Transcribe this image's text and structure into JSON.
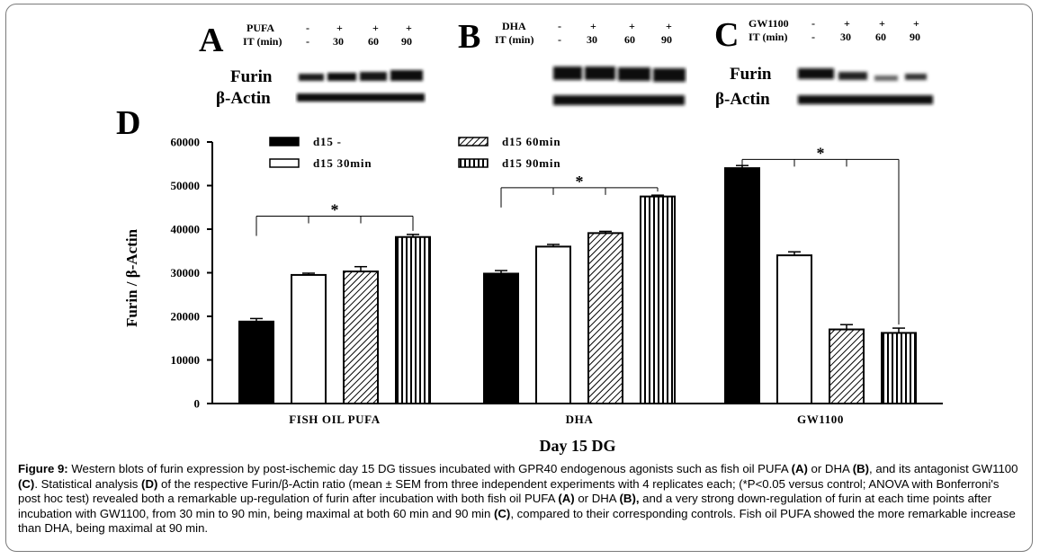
{
  "panels": {
    "A": {
      "letter": "A",
      "treatment_label": "PUFA",
      "time_label": "IT (min)",
      "treatment_values": [
        "-",
        "+",
        "+",
        "+"
      ],
      "time_values": [
        "-",
        "30",
        "60",
        "90"
      ],
      "bands": [
        "Furin",
        "β-Actin"
      ]
    },
    "B": {
      "letter": "B",
      "treatment_label": "DHA",
      "time_label": "IT (min)",
      "treatment_values": [
        "-",
        "+",
        "+",
        "+"
      ],
      "time_values": [
        "-",
        "30",
        "60",
        "90"
      ]
    },
    "C": {
      "letter": "C",
      "treatment_label": "GW1100",
      "time_label": "IT (min)",
      "treatment_values": [
        "-",
        "+",
        "+",
        "+"
      ],
      "time_values": [
        "-",
        "30",
        "60",
        "90"
      ],
      "bands": [
        "Furin",
        "β-Actin"
      ]
    },
    "D": {
      "letter": "D"
    }
  },
  "chart_data": {
    "type": "bar",
    "ylabel": "Furin / β-Actin",
    "xlabel": "Day 15 DG",
    "ylim": [
      0,
      60000
    ],
    "yticks": [
      "0",
      "10000",
      "20000",
      "30000",
      "40000",
      "50000",
      "60000"
    ],
    "categories": [
      "FISH OIL PUFA",
      "DHA",
      "GW1100"
    ],
    "series": [
      {
        "name": "d15 -",
        "pattern": "solid",
        "values": [
          18800,
          29800,
          54000
        ],
        "errors": [
          700,
          700,
          600
        ]
      },
      {
        "name": "d15 30min",
        "pattern": "open",
        "values": [
          29500,
          36000,
          34000
        ],
        "errors": [
          400,
          500,
          800
        ]
      },
      {
        "name": "d15 60min",
        "pattern": "diagonal",
        "values": [
          30300,
          39100,
          17000
        ],
        "errors": [
          1100,
          400,
          1100
        ]
      },
      {
        "name": "d15 90min",
        "pattern": "vertical",
        "values": [
          38200,
          47500,
          16200
        ],
        "errors": [
          600,
          300,
          1100
        ]
      }
    ],
    "legend": [
      "d15 -",
      "d15 60min",
      "d15 30min",
      "d15 90min"
    ],
    "significance": [
      {
        "group": "FISH OIL PUFA",
        "mark": "*",
        "bracket_y": 43000
      },
      {
        "group": "DHA",
        "mark": "*",
        "bracket_y": 49500
      },
      {
        "group": "GW1100",
        "mark": "*",
        "bracket_y": 56000
      }
    ]
  },
  "caption": {
    "figure_label": "Figure 9:",
    "text": [
      {
        "t": " Western blots of furin expression by post-ischemic day 15 DG tissues incubated with GPR40 endogenous agonists such as fish oil PUFA "
      },
      {
        "t": "(A)",
        "b": true
      },
      {
        "t": " or DHA "
      },
      {
        "t": "(B)",
        "b": true
      },
      {
        "t": ", and its antagonist GW1100 "
      },
      {
        "t": "(C)",
        "b": true
      },
      {
        "t": ". Statistical analysis "
      },
      {
        "t": "(D)",
        "b": true
      },
      {
        "t": " of the respective Furin/β-Actin ratio (mean ± SEM from three independent experiments with 4 replicates each; (*P<0.05 versus control; ANOVA with Bonferroni's post hoc test) revealed both a remarkable up-regulation of furin after incubation with both fish oil PUFA "
      },
      {
        "t": "(A)",
        "b": true
      },
      {
        "t": " or DHA "
      },
      {
        "t": "(B),",
        "b": true
      },
      {
        "t": " and a very strong down-regulation of furin at each time points after incubation with GW1100, from 30 min to 90 min, being maximal at both 60 min and 90 min "
      },
      {
        "t": "(C)",
        "b": true
      },
      {
        "t": ", compared to their corresponding controls. Fish oil PUFA showed the more remarkable increase than DHA, being maximal at 90 min."
      }
    ]
  }
}
